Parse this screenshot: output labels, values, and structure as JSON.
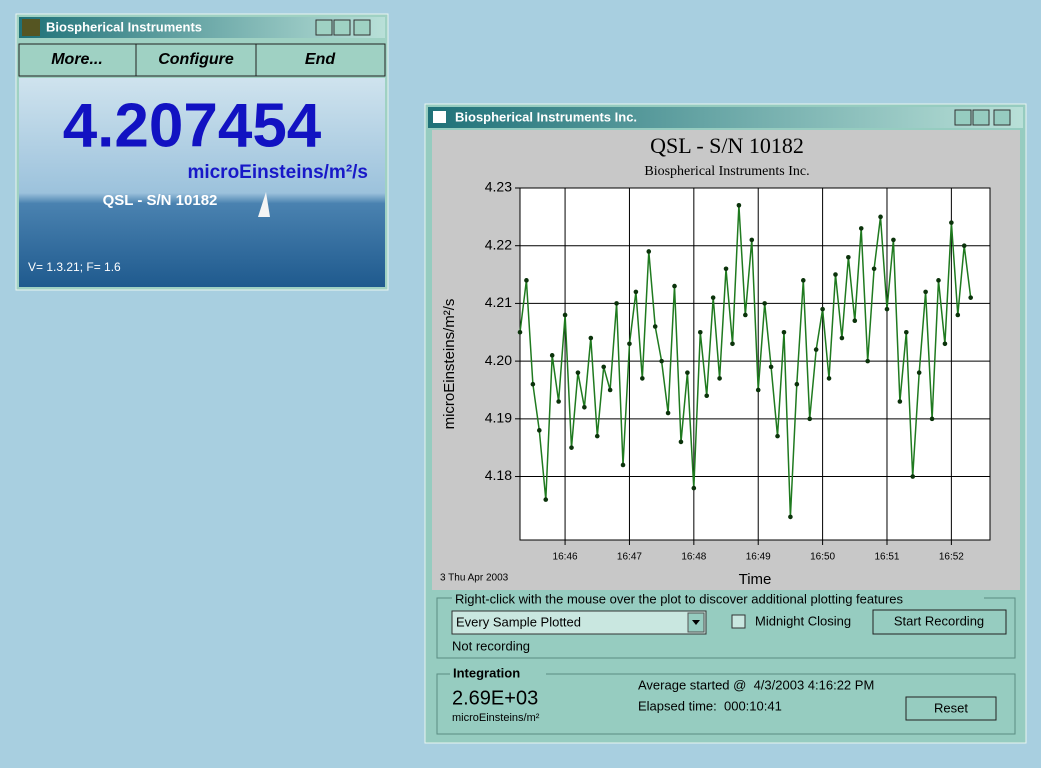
{
  "windows": {
    "small": {
      "title": "Biospherical Instruments",
      "buttons": [
        "More...",
        "Configure",
        "End"
      ],
      "reading": "4.207454",
      "unit": "microEinsteins/m²/s",
      "sensor": "QSL - S/N 10182",
      "version": "V= 1.3.21; F= 1.6"
    },
    "main": {
      "title": "Biospherical Instruments Inc.",
      "date": "3 Thu Apr 2003",
      "hint": "Right-click with the mouse over the plot to discover additional plotting features",
      "plot_mode": "Every Sample Plotted",
      "midnight_closing": "Midnight Closing",
      "start_button": "Start Recording",
      "status": "Not recording",
      "integration": {
        "label": "Integration",
        "value": "2.69E+03",
        "unit": "microEinsteins/m²",
        "average_started": "Average started @  4/3/2003 4:16:22 PM",
        "elapsed": "Elapsed time:  000:10:41",
        "reset": "Reset"
      }
    }
  },
  "chart_data": {
    "type": "line",
    "title": "QSL - S/N 10182",
    "subtitle": "Biospherical Instruments Inc.",
    "ylabel": "microEinsteins/m²/s",
    "xlabel": "Time",
    "x": [
      1005.3,
      1005.4,
      1005.5,
      1005.6,
      1005.7,
      1005.8,
      1005.9,
      1006.0,
      1006.1,
      1006.2,
      1006.3,
      1006.4,
      1006.5,
      1006.6,
      1006.7,
      1006.8,
      1006.9,
      1007.0,
      1007.1,
      1007.2,
      1007.3,
      1007.4,
      1007.5,
      1007.6,
      1007.7,
      1007.8,
      1007.9,
      1008.0,
      1008.1,
      1008.2,
      1008.3,
      1008.4,
      1008.5,
      1008.6,
      1008.7,
      1008.8,
      1008.9,
      1009.0,
      1009.1,
      1009.2,
      1009.3,
      1009.4,
      1009.5,
      1009.6,
      1009.7,
      1009.8,
      1009.9,
      1010.0,
      1010.1,
      1010.2,
      1010.3,
      1010.4,
      1010.5,
      1010.6,
      1010.7,
      1010.8,
      1010.9,
      1011.0,
      1011.1,
      1011.2,
      1011.3,
      1011.4,
      1011.5,
      1011.6,
      1011.7,
      1011.8,
      1011.9,
      1012.0,
      1012.1,
      1012.2,
      1012.3
    ],
    "values": [
      4.205,
      4.214,
      4.196,
      4.188,
      4.176,
      4.201,
      4.193,
      4.208,
      4.185,
      4.198,
      4.192,
      4.204,
      4.187,
      4.199,
      4.195,
      4.21,
      4.182,
      4.203,
      4.212,
      4.197,
      4.219,
      4.206,
      4.2,
      4.191,
      4.213,
      4.186,
      4.198,
      4.178,
      4.205,
      4.194,
      4.211,
      4.197,
      4.216,
      4.203,
      4.227,
      4.208,
      4.221,
      4.195,
      4.21,
      4.199,
      4.187,
      4.205,
      4.173,
      4.196,
      4.214,
      4.19,
      4.202,
      4.209,
      4.197,
      4.215,
      4.204,
      4.218,
      4.207,
      4.223,
      4.2,
      4.216,
      4.225,
      4.209,
      4.221,
      4.193,
      4.205,
      4.18,
      4.198,
      4.212,
      4.19,
      4.214,
      4.203,
      4.224,
      4.208,
      4.22,
      4.211
    ],
    "color": "#1f7a1f",
    "marker_color": "#0b330b",
    "xlim": [
      1005.3,
      1012.6
    ],
    "ylim": [
      4.169,
      4.23
    ],
    "xticks": [
      {
        "value": 1006,
        "label": "16:46"
      },
      {
        "value": 1007,
        "label": "16:47"
      },
      {
        "value": 1008,
        "label": "16:48"
      },
      {
        "value": 1009,
        "label": "16:49"
      },
      {
        "value": 1010,
        "label": "16:50"
      },
      {
        "value": 1011,
        "label": "16:51"
      },
      {
        "value": 1012,
        "label": "16:52"
      }
    ],
    "yticks": [
      4.18,
      4.19,
      {
        "value": 4.2,
        "label": "4.20"
      },
      4.21,
      4.22,
      4.23
    ],
    "grid": true
  }
}
